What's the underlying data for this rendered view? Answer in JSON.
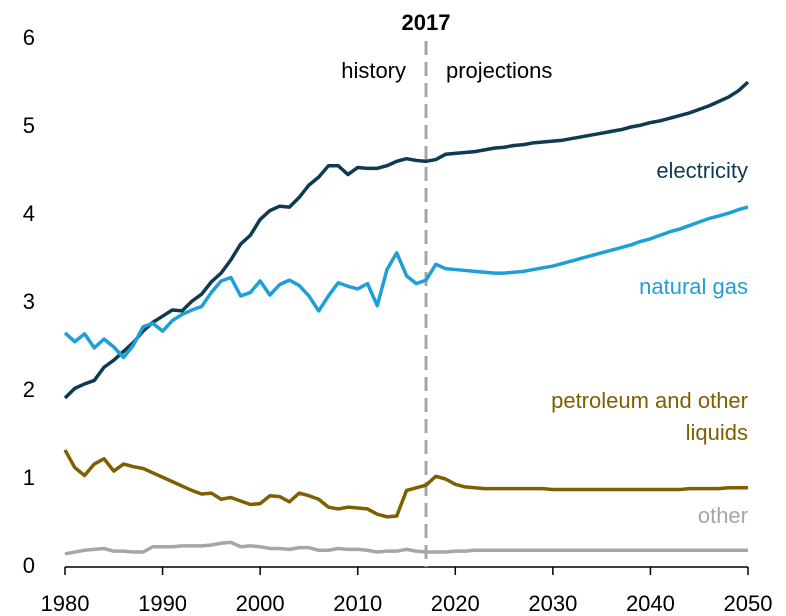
{
  "chart_data": {
    "type": "line",
    "annotations": {
      "vline": 2017,
      "left": "history",
      "right": "projections"
    },
    "x": [
      1980,
      1981,
      1982,
      1983,
      1984,
      1985,
      1986,
      1987,
      1988,
      1989,
      1990,
      1991,
      1992,
      1993,
      1994,
      1995,
      1996,
      1997,
      1998,
      1999,
      2000,
      2001,
      2002,
      2003,
      2004,
      2005,
      2006,
      2007,
      2008,
      2009,
      2010,
      2011,
      2012,
      2013,
      2014,
      2015,
      2016,
      2017,
      2018,
      2019,
      2020,
      2021,
      2022,
      2023,
      2024,
      2025,
      2026,
      2027,
      2028,
      2029,
      2030,
      2031,
      2032,
      2033,
      2034,
      2035,
      2036,
      2037,
      2038,
      2039,
      2040,
      2041,
      2042,
      2043,
      2044,
      2045,
      2046,
      2047,
      2048,
      2049,
      2050
    ],
    "series": [
      {
        "name": "electricity",
        "color": "#0d3b52",
        "values": [
          1.92,
          2.03,
          2.08,
          2.12,
          2.27,
          2.35,
          2.45,
          2.55,
          2.68,
          2.78,
          2.85,
          2.92,
          2.91,
          3.02,
          3.1,
          3.24,
          3.34,
          3.49,
          3.67,
          3.77,
          3.95,
          4.05,
          4.1,
          4.09,
          4.2,
          4.34,
          4.43,
          4.56,
          4.56,
          4.46,
          4.54,
          4.53,
          4.53,
          4.56,
          4.61,
          4.64,
          4.62,
          4.61,
          4.63,
          4.69,
          4.7,
          4.71,
          4.72,
          4.74,
          4.76,
          4.77,
          4.79,
          4.8,
          4.82,
          4.83,
          4.84,
          4.85,
          4.87,
          4.89,
          4.91,
          4.93,
          4.95,
          4.97,
          5.0,
          5.02,
          5.05,
          5.07,
          5.1,
          5.13,
          5.16,
          5.2,
          5.24,
          5.29,
          5.34,
          5.41,
          5.51
        ]
      },
      {
        "name": "natural gas",
        "color": "#1f9fd8",
        "values": [
          2.66,
          2.56,
          2.65,
          2.49,
          2.59,
          2.5,
          2.38,
          2.52,
          2.73,
          2.77,
          2.68,
          2.8,
          2.87,
          2.92,
          2.96,
          3.12,
          3.25,
          3.29,
          3.08,
          3.12,
          3.25,
          3.09,
          3.21,
          3.26,
          3.2,
          3.08,
          2.91,
          3.08,
          3.23,
          3.19,
          3.16,
          3.22,
          2.97,
          3.38,
          3.57,
          3.31,
          3.22,
          3.26,
          3.44,
          3.39,
          3.38,
          3.37,
          3.36,
          3.35,
          3.34,
          3.34,
          3.35,
          3.36,
          3.38,
          3.4,
          3.42,
          3.45,
          3.48,
          3.51,
          3.54,
          3.57,
          3.6,
          3.63,
          3.66,
          3.7,
          3.73,
          3.77,
          3.81,
          3.84,
          3.88,
          3.92,
          3.96,
          3.99,
          4.02,
          4.06,
          4.09
        ]
      },
      {
        "name": "petroleum and other liquids",
        "color": "#7f5f00",
        "values": [
          1.33,
          1.13,
          1.04,
          1.17,
          1.23,
          1.09,
          1.17,
          1.14,
          1.12,
          1.07,
          1.02,
          0.97,
          0.92,
          0.87,
          0.83,
          0.84,
          0.77,
          0.79,
          0.75,
          0.71,
          0.72,
          0.81,
          0.8,
          0.74,
          0.84,
          0.81,
          0.77,
          0.68,
          0.66,
          0.68,
          0.67,
          0.66,
          0.6,
          0.57,
          0.58,
          0.87,
          0.9,
          0.93,
          1.03,
          1.0,
          0.94,
          0.91,
          0.9,
          0.89,
          0.89,
          0.89,
          0.89,
          0.89,
          0.89,
          0.89,
          0.88,
          0.88,
          0.88,
          0.88,
          0.88,
          0.88,
          0.88,
          0.88,
          0.88,
          0.88,
          0.88,
          0.88,
          0.88,
          0.88,
          0.89,
          0.89,
          0.89,
          0.89,
          0.9,
          0.9,
          0.9
        ]
      },
      {
        "name": "other",
        "color": "#a6a6a6",
        "values": [
          0.15,
          0.17,
          0.19,
          0.2,
          0.21,
          0.18,
          0.18,
          0.17,
          0.17,
          0.23,
          0.23,
          0.23,
          0.24,
          0.24,
          0.24,
          0.25,
          0.27,
          0.28,
          0.23,
          0.24,
          0.23,
          0.21,
          0.21,
          0.2,
          0.22,
          0.22,
          0.19,
          0.19,
          0.21,
          0.2,
          0.2,
          0.19,
          0.17,
          0.18,
          0.18,
          0.2,
          0.18,
          0.17,
          0.17,
          0.17,
          0.18,
          0.18,
          0.19,
          0.19,
          0.19,
          0.19,
          0.19,
          0.19,
          0.19,
          0.19,
          0.19,
          0.19,
          0.19,
          0.19,
          0.19,
          0.19,
          0.19,
          0.19,
          0.19,
          0.19,
          0.19,
          0.19,
          0.19,
          0.19,
          0.19,
          0.19,
          0.19,
          0.19,
          0.19,
          0.19,
          0.19
        ]
      }
    ],
    "xlim": [
      1980,
      2050
    ],
    "xticks": [
      1980,
      1990,
      2000,
      2010,
      2020,
      2030,
      2040,
      2050
    ],
    "ylim": [
      0,
      6
    ],
    "yticks": [
      0,
      1,
      2,
      3,
      4,
      5,
      6
    ],
    "grid": false
  }
}
